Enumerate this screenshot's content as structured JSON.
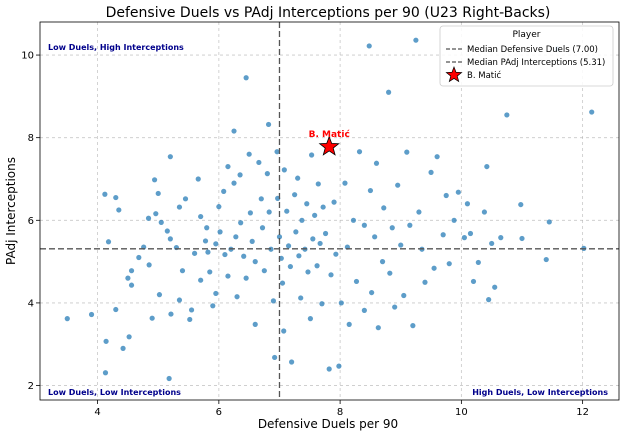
{
  "chart_data": {
    "type": "scatter",
    "title": "Defensive Duels vs PAdj Interceptions per 90 (U23 Right-Backs)",
    "xlabel": "Defensive Duels per 90",
    "ylabel": "PAdj Interceptions",
    "xlim": [
      3.05,
      12.6
    ],
    "ylim": [
      1.65,
      10.8
    ],
    "xticks": [
      4,
      6,
      8,
      10,
      12
    ],
    "yticks": [
      2,
      4,
      6,
      8,
      10
    ],
    "grid": true,
    "legend": {
      "title": "Player",
      "placement": "top-right",
      "entries": [
        {
          "label": "Median Defensive Duels (7.00)",
          "style": "dashed-line"
        },
        {
          "label": "Median PAdj Interceptions (5.31)",
          "style": "dashed-line"
        },
        {
          "label": "B. Matić",
          "style": "red-star"
        }
      ]
    },
    "median_x": 7.0,
    "median_y": 5.31,
    "quadrant_labels": [
      {
        "text": "Low Duels, High Interceptions",
        "corner": "top-left"
      },
      {
        "text": "Low Duels, Low Interceptions",
        "corner": "bottom-left"
      },
      {
        "text": "High Duels, Low Interceptions",
        "corner": "bottom-right"
      }
    ],
    "highlight": {
      "name": "B. Matić",
      "x": 7.82,
      "y": 7.78,
      "color": "#ff0000"
    },
    "series": [
      {
        "color": "#1f77b4",
        "points": [
          [
            3.5,
            3.62
          ],
          [
            3.9,
            3.72
          ],
          [
            4.12,
            6.63
          ],
          [
            4.18,
            5.48
          ],
          [
            4.13,
            2.31
          ],
          [
            4.14,
            3.07
          ],
          [
            4.3,
            6.55
          ],
          [
            4.35,
            6.25
          ],
          [
            4.3,
            3.84
          ],
          [
            4.42,
            2.9
          ],
          [
            4.52,
            3.18
          ],
          [
            4.5,
            4.6
          ],
          [
            4.56,
            4.78
          ],
          [
            4.56,
            4.43
          ],
          [
            4.68,
            5.1
          ],
          [
            4.76,
            5.35
          ],
          [
            4.84,
            6.05
          ],
          [
            4.85,
            4.92
          ],
          [
            4.9,
            3.63
          ],
          [
            4.94,
            6.98
          ],
          [
            4.96,
            6.16
          ],
          [
            5.0,
            6.65
          ],
          [
            5.05,
            5.95
          ],
          [
            5.02,
            4.2
          ],
          [
            5.15,
            5.74
          ],
          [
            5.2,
            5.55
          ],
          [
            5.2,
            7.54
          ],
          [
            5.21,
            3.73
          ],
          [
            5.18,
            2.17
          ],
          [
            5.3,
            5.34
          ],
          [
            5.35,
            6.32
          ],
          [
            5.4,
            4.78
          ],
          [
            5.35,
            4.07
          ],
          [
            5.45,
            6.52
          ],
          [
            5.52,
            3.6
          ],
          [
            5.55,
            3.83
          ],
          [
            5.6,
            5.2
          ],
          [
            5.66,
            7.0
          ],
          [
            5.7,
            6.09
          ],
          [
            5.7,
            4.55
          ],
          [
            5.8,
            5.82
          ],
          [
            5.78,
            5.5
          ],
          [
            5.82,
            5.23
          ],
          [
            5.85,
            4.75
          ],
          [
            5.9,
            3.93
          ],
          [
            5.95,
            5.43
          ],
          [
            5.95,
            4.23
          ],
          [
            6.0,
            6.33
          ],
          [
            6.02,
            5.72
          ],
          [
            6.08,
            6.7
          ],
          [
            6.1,
            5.17
          ],
          [
            6.15,
            7.3
          ],
          [
            6.15,
            4.65
          ],
          [
            6.2,
            5.3
          ],
          [
            6.25,
            8.16
          ],
          [
            6.25,
            6.9
          ],
          [
            6.28,
            5.6
          ],
          [
            6.3,
            4.15
          ],
          [
            6.35,
            7.1
          ],
          [
            6.36,
            5.94
          ],
          [
            6.41,
            5.13
          ],
          [
            6.45,
            9.45
          ],
          [
            6.45,
            4.6
          ],
          [
            6.5,
            7.6
          ],
          [
            6.52,
            6.18
          ],
          [
            6.55,
            5.49
          ],
          [
            6.6,
            5.0
          ],
          [
            6.6,
            3.48
          ],
          [
            6.66,
            7.4
          ],
          [
            6.7,
            6.52
          ],
          [
            6.72,
            5.82
          ],
          [
            6.75,
            4.78
          ],
          [
            6.82,
            8.32
          ],
          [
            6.8,
            7.13
          ],
          [
            6.83,
            6.2
          ],
          [
            6.86,
            5.3
          ],
          [
            6.9,
            4.05
          ],
          [
            6.92,
            2.68
          ],
          [
            6.96,
            7.66
          ],
          [
            6.97,
            6.53
          ],
          [
            7.0,
            5.6
          ],
          [
            7.03,
            5.08
          ],
          [
            7.05,
            4.48
          ],
          [
            7.07,
            3.32
          ],
          [
            7.08,
            7.22
          ],
          [
            7.12,
            6.22
          ],
          [
            7.15,
            5.38
          ],
          [
            7.18,
            4.88
          ],
          [
            7.2,
            2.57
          ],
          [
            7.25,
            6.62
          ],
          [
            7.27,
            5.72
          ],
          [
            7.3,
            7.02
          ],
          [
            7.32,
            5.14
          ],
          [
            7.35,
            4.12
          ],
          [
            7.37,
            6.0
          ],
          [
            7.42,
            5.3
          ],
          [
            7.45,
            6.4
          ],
          [
            7.47,
            4.75
          ],
          [
            7.51,
            3.62
          ],
          [
            7.53,
            7.58
          ],
          [
            7.55,
            5.55
          ],
          [
            7.58,
            6.12
          ],
          [
            7.62,
            4.9
          ],
          [
            7.64,
            6.88
          ],
          [
            7.67,
            5.44
          ],
          [
            7.7,
            3.98
          ],
          [
            7.72,
            6.32
          ],
          [
            7.76,
            5.68
          ],
          [
            7.82,
            2.4
          ],
          [
            7.85,
            4.68
          ],
          [
            7.9,
            6.44
          ],
          [
            7.93,
            5.18
          ],
          [
            7.98,
            2.47
          ],
          [
            8.02,
            4.0
          ],
          [
            8.08,
            6.9
          ],
          [
            8.12,
            5.35
          ],
          [
            8.15,
            3.48
          ],
          [
            8.22,
            6.0
          ],
          [
            8.27,
            4.52
          ],
          [
            8.32,
            7.66
          ],
          [
            8.4,
            5.88
          ],
          [
            8.4,
            3.82
          ],
          [
            8.48,
            10.22
          ],
          [
            8.5,
            6.72
          ],
          [
            8.52,
            4.25
          ],
          [
            8.57,
            5.6
          ],
          [
            8.6,
            7.38
          ],
          [
            8.63,
            3.4
          ],
          [
            8.7,
            5.0
          ],
          [
            8.72,
            6.3
          ],
          [
            8.8,
            9.1
          ],
          [
            8.82,
            4.72
          ],
          [
            8.86,
            5.82
          ],
          [
            8.9,
            3.9
          ],
          [
            8.95,
            6.85
          ],
          [
            9.0,
            5.4
          ],
          [
            9.05,
            4.18
          ],
          [
            9.1,
            7.65
          ],
          [
            9.15,
            5.88
          ],
          [
            9.2,
            3.45
          ],
          [
            9.25,
            10.36
          ],
          [
            9.3,
            6.2
          ],
          [
            9.35,
            5.3
          ],
          [
            9.4,
            4.5
          ],
          [
            9.5,
            7.16
          ],
          [
            9.55,
            4.84
          ],
          [
            9.6,
            7.54
          ],
          [
            9.7,
            5.65
          ],
          [
            9.75,
            6.6
          ],
          [
            9.8,
            4.95
          ],
          [
            9.88,
            6.0
          ],
          [
            9.95,
            6.68
          ],
          [
            10.05,
            5.58
          ],
          [
            10.1,
            6.4
          ],
          [
            10.15,
            5.68
          ],
          [
            10.2,
            4.52
          ],
          [
            10.28,
            4.98
          ],
          [
            10.38,
            6.2
          ],
          [
            10.42,
            7.3
          ],
          [
            10.45,
            4.08
          ],
          [
            10.5,
            5.44
          ],
          [
            10.55,
            4.38
          ],
          [
            10.65,
            5.58
          ],
          [
            10.75,
            8.55
          ],
          [
            10.98,
            6.38
          ],
          [
            11.0,
            5.56
          ],
          [
            11.4,
            5.05
          ],
          [
            11.45,
            5.96
          ],
          [
            11.58,
            10.15
          ],
          [
            12.02,
            5.32
          ],
          [
            12.15,
            8.62
          ]
        ]
      }
    ]
  }
}
